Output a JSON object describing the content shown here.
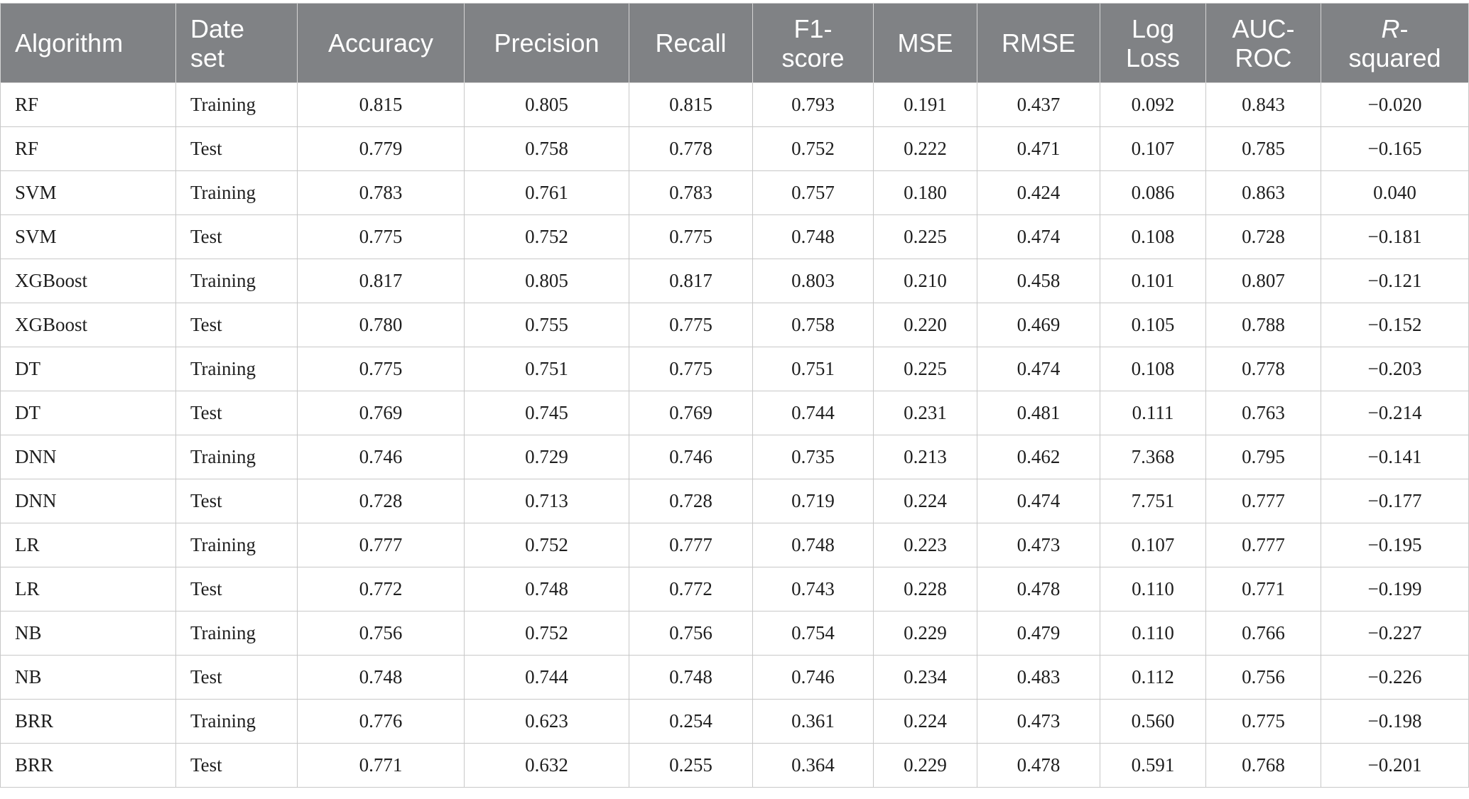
{
  "table": {
    "headers": [
      {
        "key": "algorithm",
        "label": "Algorithm"
      },
      {
        "key": "dataset",
        "label": "Date set"
      },
      {
        "key": "accuracy",
        "label": "Accuracy"
      },
      {
        "key": "precision",
        "label": "Precision"
      },
      {
        "key": "recall",
        "label": "Recall"
      },
      {
        "key": "f1",
        "label": "F1-score"
      },
      {
        "key": "mse",
        "label": "MSE"
      },
      {
        "key": "rmse",
        "label": "RMSE"
      },
      {
        "key": "logloss",
        "label": "Log Loss"
      },
      {
        "key": "aucroc",
        "label": "AUC-ROC"
      },
      {
        "key": "rsquared",
        "label_italic": "R",
        "label_rest": "-squared"
      }
    ],
    "rows": [
      [
        "RF",
        "Training",
        "0.815",
        "0.805",
        "0.815",
        "0.793",
        "0.191",
        "0.437",
        "0.092",
        "0.843",
        "−0.020"
      ],
      [
        "RF",
        "Test",
        "0.779",
        "0.758",
        "0.778",
        "0.752",
        "0.222",
        "0.471",
        "0.107",
        "0.785",
        "−0.165"
      ],
      [
        "SVM",
        "Training",
        "0.783",
        "0.761",
        "0.783",
        "0.757",
        "0.180",
        "0.424",
        "0.086",
        "0.863",
        "0.040"
      ],
      [
        "SVM",
        "Test",
        "0.775",
        "0.752",
        "0.775",
        "0.748",
        "0.225",
        "0.474",
        "0.108",
        "0.728",
        "−0.181"
      ],
      [
        "XGBoost",
        "Training",
        "0.817",
        "0.805",
        "0.817",
        "0.803",
        "0.210",
        "0.458",
        "0.101",
        "0.807",
        "−0.121"
      ],
      [
        "XGBoost",
        "Test",
        "0.780",
        "0.755",
        "0.775",
        "0.758",
        "0.220",
        "0.469",
        "0.105",
        "0.788",
        "−0.152"
      ],
      [
        "DT",
        "Training",
        "0.775",
        "0.751",
        "0.775",
        "0.751",
        "0.225",
        "0.474",
        "0.108",
        "0.778",
        "−0.203"
      ],
      [
        "DT",
        "Test",
        "0.769",
        "0.745",
        "0.769",
        "0.744",
        "0.231",
        "0.481",
        "0.111",
        "0.763",
        "−0.214"
      ],
      [
        "DNN",
        "Training",
        "0.746",
        "0.729",
        "0.746",
        "0.735",
        "0.213",
        "0.462",
        "7.368",
        "0.795",
        "−0.141"
      ],
      [
        "DNN",
        "Test",
        "0.728",
        "0.713",
        "0.728",
        "0.719",
        "0.224",
        "0.474",
        "7.751",
        "0.777",
        "−0.177"
      ],
      [
        "LR",
        "Training",
        "0.777",
        "0.752",
        "0.777",
        "0.748",
        "0.223",
        "0.473",
        "0.107",
        "0.777",
        "−0.195"
      ],
      [
        "LR",
        "Test",
        "0.772",
        "0.748",
        "0.772",
        "0.743",
        "0.228",
        "0.478",
        "0.110",
        "0.771",
        "−0.199"
      ],
      [
        "NB",
        "Training",
        "0.756",
        "0.752",
        "0.756",
        "0.754",
        "0.229",
        "0.479",
        "0.110",
        "0.766",
        "−0.227"
      ],
      [
        "NB",
        "Test",
        "0.748",
        "0.744",
        "0.748",
        "0.746",
        "0.234",
        "0.483",
        "0.112",
        "0.756",
        "−0.226"
      ],
      [
        "BRR",
        "Training",
        "0.776",
        "0.623",
        "0.254",
        "0.361",
        "0.224",
        "0.473",
        "0.560",
        "0.775",
        "−0.198"
      ],
      [
        "BRR",
        "Test",
        "0.771",
        "0.632",
        "0.255",
        "0.364",
        "0.229",
        "0.478",
        "0.591",
        "0.768",
        "−0.201"
      ]
    ]
  },
  "colors": {
    "header_bg": "#808285",
    "header_text": "#ffffff",
    "border": "#c8c8c8",
    "body_text": "#1e1e1e"
  }
}
